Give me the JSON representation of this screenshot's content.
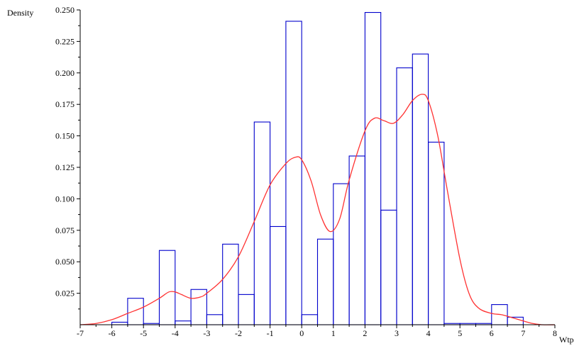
{
  "chart_data": {
    "type": "bar",
    "xlabel": "Wtp",
    "ylabel": "Density",
    "xlim": [
      -7,
      8
    ],
    "ylim": [
      0,
      0.25
    ],
    "bin_width": 0.5,
    "x_ticks": [
      -7,
      -6,
      -5,
      -4,
      -3,
      -2,
      -1,
      0,
      1,
      2,
      3,
      4,
      5,
      6,
      7,
      8
    ],
    "x_tick_labels": [
      "-7",
      "-6",
      "-5",
      "-4",
      "-3",
      "-2",
      "-1",
      "0",
      "1",
      "2",
      "3",
      "4",
      "5",
      "6",
      "7",
      "8"
    ],
    "y_ticks": [
      0.025,
      0.05,
      0.075,
      0.1,
      0.125,
      0.15,
      0.175,
      0.2,
      0.225,
      0.25
    ],
    "y_tick_labels": [
      "0.025",
      "0.050",
      "0.075",
      "0.100",
      "0.125",
      "0.150",
      "0.175",
      "0.200",
      "0.225",
      "0.250"
    ],
    "grid": false,
    "series": [
      {
        "type": "histogram",
        "color": "#0000cc",
        "bins": [
          {
            "start": -6.0,
            "value": 0.002
          },
          {
            "start": -5.5,
            "value": 0.021
          },
          {
            "start": -5.0,
            "value": 0.001
          },
          {
            "start": -4.5,
            "value": 0.059
          },
          {
            "start": -4.0,
            "value": 0.003
          },
          {
            "start": -3.5,
            "value": 0.028
          },
          {
            "start": -3.0,
            "value": 0.008
          },
          {
            "start": -2.5,
            "value": 0.064
          },
          {
            "start": -2.0,
            "value": 0.024
          },
          {
            "start": -1.5,
            "value": 0.161
          },
          {
            "start": -1.0,
            "value": 0.078
          },
          {
            "start": -0.5,
            "value": 0.241
          },
          {
            "start": 0.0,
            "value": 0.008
          },
          {
            "start": 0.5,
            "value": 0.068
          },
          {
            "start": 1.0,
            "value": 0.112
          },
          {
            "start": 1.5,
            "value": 0.134
          },
          {
            "start": 2.0,
            "value": 0.248
          },
          {
            "start": 2.5,
            "value": 0.091
          },
          {
            "start": 3.0,
            "value": 0.204
          },
          {
            "start": 3.5,
            "value": 0.215
          },
          {
            "start": 4.0,
            "value": 0.145
          },
          {
            "start": 4.5,
            "value": 0.001
          },
          {
            "start": 5.0,
            "value": 0.001
          },
          {
            "start": 5.5,
            "value": 0.001
          },
          {
            "start": 6.0,
            "value": 0.016
          },
          {
            "start": 6.5,
            "value": 0.006
          }
        ]
      },
      {
        "type": "line",
        "color": "#ff3333",
        "x": [
          -7.0,
          -6.5,
          -6.0,
          -5.5,
          -5.0,
          -4.5,
          -4.2,
          -4.0,
          -3.8,
          -3.5,
          -3.2,
          -3.0,
          -2.5,
          -2.0,
          -1.5,
          -1.0,
          -0.5,
          -0.2,
          0.0,
          0.3,
          0.6,
          0.9,
          1.2,
          1.5,
          2.0,
          2.3,
          2.6,
          2.9,
          3.2,
          3.5,
          3.8,
          4.0,
          4.3,
          4.6,
          5.0,
          5.3,
          5.6,
          6.0,
          6.3,
          6.6,
          7.0,
          7.3,
          7.6,
          8.0
        ],
        "y": [
          0.0,
          0.001,
          0.004,
          0.009,
          0.014,
          0.021,
          0.026,
          0.026,
          0.024,
          0.021,
          0.022,
          0.025,
          0.036,
          0.054,
          0.082,
          0.111,
          0.128,
          0.133,
          0.131,
          0.114,
          0.087,
          0.074,
          0.084,
          0.115,
          0.154,
          0.164,
          0.162,
          0.16,
          0.167,
          0.178,
          0.183,
          0.178,
          0.15,
          0.107,
          0.052,
          0.024,
          0.013,
          0.009,
          0.008,
          0.006,
          0.003,
          0.001,
          0.0,
          0.0
        ]
      }
    ]
  }
}
